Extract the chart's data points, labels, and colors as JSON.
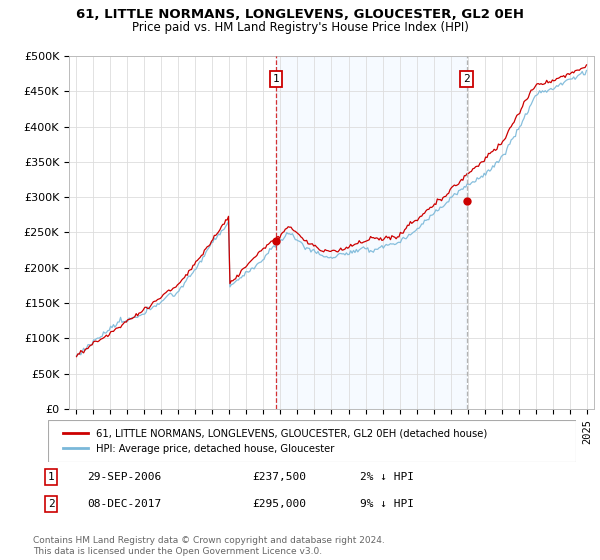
{
  "title": "61, LITTLE NORMANS, LONGLEVENS, GLOUCESTER, GL2 0EH",
  "subtitle": "Price paid vs. HM Land Registry's House Price Index (HPI)",
  "ylabel_ticks": [
    "£0",
    "£50K",
    "£100K",
    "£150K",
    "£200K",
    "£250K",
    "£300K",
    "£350K",
    "£400K",
    "£450K",
    "£500K"
  ],
  "ytick_values": [
    0,
    50000,
    100000,
    150000,
    200000,
    250000,
    300000,
    350000,
    400000,
    450000,
    500000
  ],
  "ylim": [
    0,
    500000
  ],
  "xlim_start": 1994.6,
  "xlim_end": 2025.4,
  "hpi_color": "#7ab8d9",
  "price_color": "#cc0000",
  "vline1_color": "#cc0000",
  "vline2_color": "#aaaaaa",
  "vline_style": "dashed",
  "shade_color": "#ddeeff",
  "marker1_year": 2006.75,
  "marker1_value": 237500,
  "marker2_year": 2017.92,
  "marker2_value": 295000,
  "legend_label1": "61, LITTLE NORMANS, LONGLEVENS, GLOUCESTER, GL2 0EH (detached house)",
  "legend_label2": "HPI: Average price, detached house, Gloucester",
  "annotation1_label": "1",
  "annotation1_date": "29-SEP-2006",
  "annotation1_price": "£237,500",
  "annotation1_pct": "2% ↓ HPI",
  "annotation2_label": "2",
  "annotation2_date": "08-DEC-2017",
  "annotation2_price": "£295,000",
  "annotation2_pct": "9% ↓ HPI",
  "footnote": "Contains HM Land Registry data © Crown copyright and database right 2024.\nThis data is licensed under the Open Government Licence v3.0.",
  "background_color": "#ffffff",
  "grid_color": "#dddddd"
}
